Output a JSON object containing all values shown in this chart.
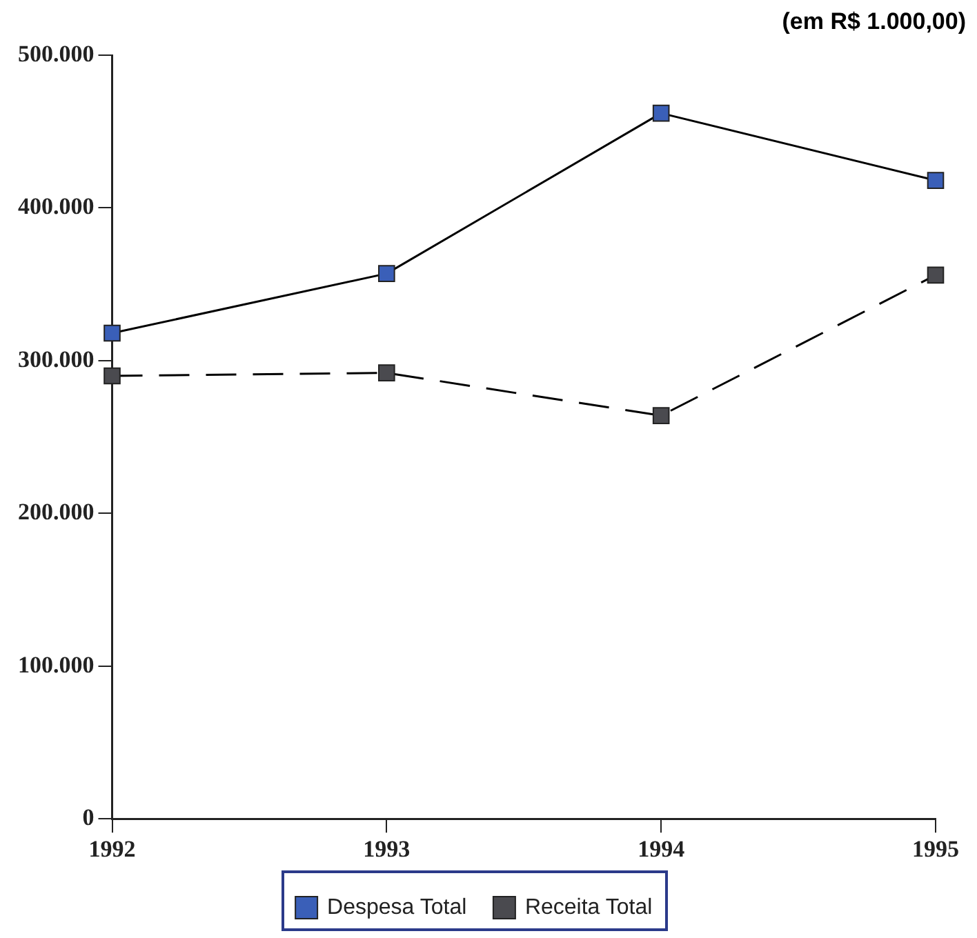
{
  "chart_data": {
    "type": "line",
    "categories": [
      "1992",
      "1993",
      "1994",
      "1995"
    ],
    "series": [
      {
        "name": "Despesa Total",
        "color": "#3a5fb8",
        "line_style": "solid",
        "values": [
          318000,
          357000,
          462000,
          418000
        ]
      },
      {
        "name": "Receita Total",
        "color": "#4a4a4f",
        "line_style": "dashed",
        "values": [
          290000,
          292000,
          264000,
          356000
        ]
      }
    ],
    "ylim": [
      0,
      500000
    ],
    "yticks": [
      0,
      {
        "value": 100000,
        "label": "100.000"
      },
      {
        "value": 200000,
        "label": "200.000"
      },
      {
        "value": 300000,
        "label": "300.000"
      },
      {
        "value": 400000,
        "label": "400.000"
      },
      {
        "value": 500000,
        "label": "500.000"
      }
    ],
    "annotations": [
      "(em R$ 1.000,00)"
    ],
    "grid": false,
    "legend": "bottom",
    "marker": "square"
  }
}
